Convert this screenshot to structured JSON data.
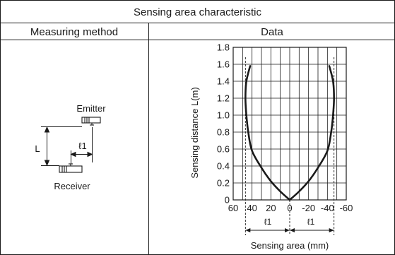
{
  "table": {
    "title": "Sensing area characteristic",
    "col_left": "Measuring method",
    "col_right": "Data"
  },
  "diagram": {
    "emitter_label": "Emitter",
    "receiver_label": "Receiver",
    "distance_label": "L",
    "offset_label": "ℓ1"
  },
  "chart_data": {
    "type": "line",
    "xlabel": "Sensing area (mm)",
    "ylabel": "Sensing distance L(m)",
    "xlim": [
      60,
      -60
    ],
    "ylim": [
      0,
      1.8
    ],
    "xticks": [
      60,
      40,
      20,
      0,
      -20,
      -40,
      -60
    ],
    "xtick_labels": [
      "60",
      "40",
      "20",
      "0",
      "-20",
      "-40",
      "-60"
    ],
    "yticks": [
      0,
      0.2,
      0.4,
      0.6,
      0.8,
      1.0,
      1.2,
      1.4,
      1.6,
      1.8
    ],
    "ytick_labels": [
      "0",
      "0.2",
      "0.4",
      "0.6",
      "0.8",
      "1.0",
      "1.2",
      "1.4",
      "1.6",
      "1.8"
    ],
    "grid": true,
    "x_step": 10,
    "series": [
      {
        "x": [
          0,
          10,
          20,
          30,
          40,
          44,
          46,
          47,
          46,
          42
        ],
        "y": [
          0,
          0.1,
          0.22,
          0.38,
          0.58,
          0.8,
          1.0,
          1.2,
          1.4,
          1.58
        ]
      },
      {
        "x": [
          0,
          -10,
          -20,
          -30,
          -40,
          -44,
          -46,
          -47,
          -46,
          -42
        ],
        "y": [
          0,
          0.1,
          0.22,
          0.38,
          0.58,
          0.8,
          1.0,
          1.2,
          1.4,
          1.58
        ]
      }
    ],
    "l1_left_label": "ℓ1",
    "l1_right_label": "ℓ1"
  }
}
